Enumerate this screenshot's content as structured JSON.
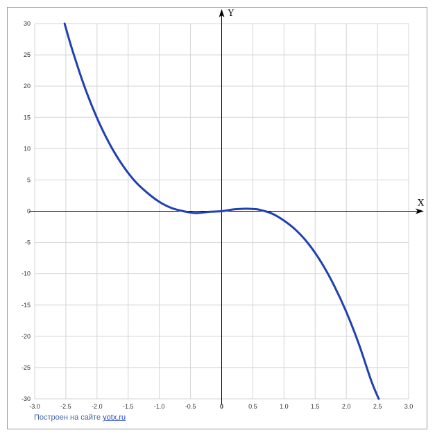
{
  "chart_data": {
    "type": "line",
    "title": "",
    "xlabel": "X",
    "ylabel": "Y",
    "xlim": [
      -3.0,
      3.0
    ],
    "ylim": [
      -30,
      30
    ],
    "grid": true,
    "x_ticks": [
      "-3.0",
      "-2.5",
      "-2.0",
      "-1.5",
      "-1.0",
      "-0.5",
      "0",
      "0.5",
      "1.0",
      "1.5",
      "2.0",
      "2.5",
      "3.0"
    ],
    "y_ticks": [
      "30",
      "25",
      "20",
      "15",
      "10",
      "5",
      "0",
      "-5",
      "-10",
      "-15",
      "-20",
      "-25",
      "-30"
    ],
    "series": [
      {
        "color": "#2040b0",
        "x": [
          -2.52,
          -2.4,
          -2.2,
          -2.0,
          -1.8,
          -1.6,
          -1.4,
          -1.2,
          -1.0,
          -0.8,
          -0.6,
          -0.5,
          -0.4,
          -0.2,
          0.0,
          0.2,
          0.4,
          0.5,
          0.6,
          0.8,
          1.0,
          1.2,
          1.4,
          1.6,
          1.8,
          2.0,
          2.2,
          2.4,
          2.52
        ],
        "y": [
          30.0,
          25.9,
          19.9,
          14.9,
          10.8,
          7.5,
          4.9,
          3.0,
          1.5,
          0.5,
          -0.03,
          -0.2,
          -0.3,
          -0.1,
          0.0,
          0.3,
          0.4,
          0.35,
          0.25,
          -0.35,
          -1.5,
          -3.1,
          -5.3,
          -8.2,
          -11.8,
          -16.1,
          -21.2,
          -27.1,
          -30.0
        ]
      }
    ]
  },
  "credit": {
    "text": "Построен на сайте",
    "link": "yotx.ru"
  }
}
